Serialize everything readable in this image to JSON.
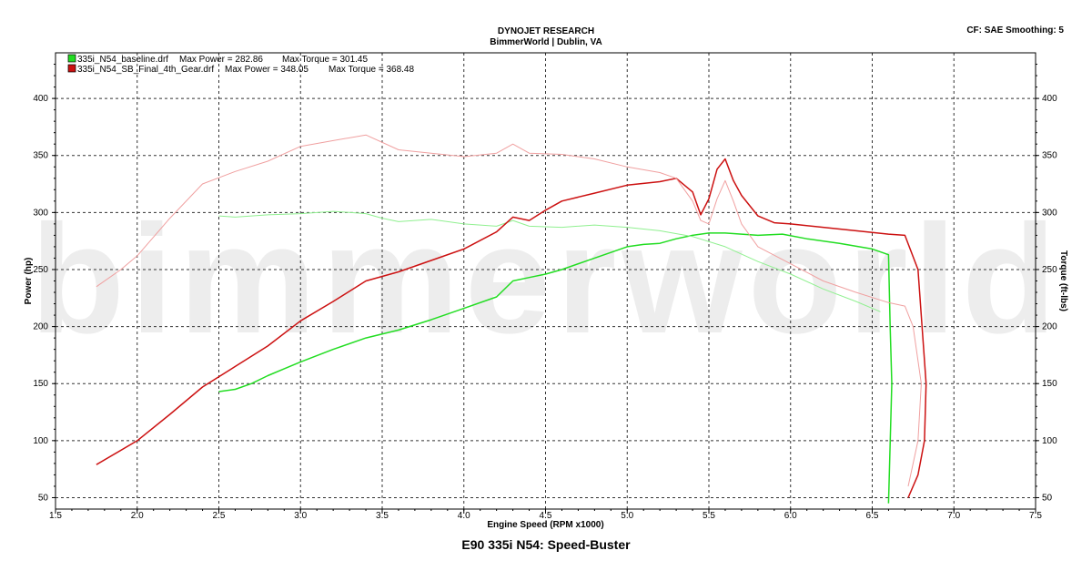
{
  "header": {
    "title": "DYNOJET RESEARCH",
    "subtitle": "BimmerWorld | Dublin, VA",
    "settings": "CF: SAE  Smoothing: 5"
  },
  "watermark": "bimmerworld",
  "chart_data": {
    "type": "line",
    "title": "E90 335i N54: Speed-Buster",
    "xlabel": "Engine Speed (RPM x1000)",
    "ylabel_left": "Power (hp)",
    "ylabel_right": "Torque (ft-lbs)",
    "xlim": [
      1.5,
      7.5
    ],
    "ylim_left": [
      40,
      440
    ],
    "ylim_right": [
      40,
      440
    ],
    "xticks": [
      "1.5",
      "2.0",
      "2.5",
      "3.0",
      "3.5",
      "4.0",
      "4.5",
      "5.0",
      "5.5",
      "6.0",
      "6.5",
      "7.0",
      "7.5"
    ],
    "yticks_left": [
      "50",
      "100",
      "150",
      "200",
      "250",
      "300",
      "350",
      "400"
    ],
    "yticks_right": [
      "50",
      "100",
      "150",
      "200",
      "250",
      "300",
      "350",
      "400"
    ],
    "grid": true,
    "legend": [
      {
        "file": "335i_N54_baseline.drf",
        "max_power_label": "Max Power = 282.86",
        "max_torque_label": "Max Torque = 301.45",
        "color": "#22dd22"
      },
      {
        "file": "335i_N54_SB_Final_4th_Gear.drf",
        "max_power_label": "Max Power = 348.05",
        "max_torque_label": "Max Torque = 368.48",
        "color": "#cc1111"
      }
    ],
    "series": [
      {
        "name": "335i_N54_baseline.drf",
        "quantity": "power",
        "color": "#22dd22",
        "width": 1.5,
        "x": [
          2.5,
          2.6,
          2.7,
          2.8,
          2.9,
          3.0,
          3.2,
          3.4,
          3.6,
          3.8,
          4.0,
          4.2,
          4.3,
          4.4,
          4.5,
          4.6,
          4.8,
          5.0,
          5.1,
          5.2,
          5.3,
          5.4,
          5.5,
          5.6,
          5.8,
          5.95,
          6.1,
          6.3,
          6.5,
          6.6,
          6.61,
          6.62,
          6.6
        ],
        "y": [
          143,
          145,
          150,
          157,
          163,
          169,
          180,
          190,
          197,
          206,
          216,
          226,
          240,
          243,
          246,
          250,
          260,
          270,
          272,
          273,
          277,
          280,
          282,
          282,
          280,
          281,
          277,
          273,
          268,
          263,
          200,
          150,
          45
        ]
      },
      {
        "name": "335i_N54_baseline.drf",
        "quantity": "torque",
        "color": "#90f090",
        "width": 1.0,
        "x": [
          2.5,
          2.6,
          2.8,
          3.0,
          3.2,
          3.3,
          3.4,
          3.5,
          3.6,
          3.8,
          4.0,
          4.2,
          4.3,
          4.4,
          4.6,
          4.8,
          5.0,
          5.2,
          5.4,
          5.6,
          5.8,
          6.0,
          6.2,
          6.4,
          6.55
        ],
        "y": [
          297,
          296,
          298,
          299,
          301,
          300,
          299,
          295,
          292,
          294,
          290,
          288,
          293,
          288,
          287,
          289,
          287,
          284,
          279,
          270,
          257,
          246,
          233,
          222,
          213
        ]
      },
      {
        "name": "335i_N54_SB_Final_4th_Gear.drf",
        "quantity": "power",
        "color": "#cc1111",
        "width": 1.5,
        "x": [
          1.75,
          2.0,
          2.2,
          2.4,
          2.6,
          2.8,
          3.0,
          3.2,
          3.4,
          3.6,
          3.8,
          4.0,
          4.2,
          4.3,
          4.4,
          4.5,
          4.6,
          4.8,
          5.0,
          5.2,
          5.3,
          5.4,
          5.45,
          5.5,
          5.55,
          5.6,
          5.65,
          5.7,
          5.8,
          5.9,
          6.0,
          6.2,
          6.4,
          6.6,
          6.7,
          6.78,
          6.83,
          6.82,
          6.78,
          6.72
        ],
        "y": [
          79,
          100,
          123,
          147,
          165,
          183,
          205,
          222,
          240,
          248,
          258,
          268,
          283,
          296,
          293,
          302,
          310,
          317,
          324,
          327,
          330,
          318,
          298,
          312,
          338,
          347,
          328,
          315,
          297,
          291,
          290,
          287,
          284,
          281,
          280,
          250,
          150,
          100,
          70,
          50
        ]
      },
      {
        "name": "335i_N54_SB_Final_4th_Gear.drf",
        "quantity": "torque",
        "color": "#f0a0a0",
        "width": 1.0,
        "x": [
          1.75,
          1.9,
          2.0,
          2.2,
          2.4,
          2.6,
          2.8,
          3.0,
          3.2,
          3.4,
          3.6,
          3.8,
          4.0,
          4.2,
          4.3,
          4.4,
          4.6,
          4.8,
          5.0,
          5.2,
          5.3,
          5.4,
          5.45,
          5.5,
          5.55,
          5.6,
          5.65,
          5.7,
          5.8,
          6.0,
          6.2,
          6.4,
          6.6,
          6.7,
          6.75,
          6.8,
          6.78,
          6.72
        ],
        "y": [
          235,
          250,
          262,
          295,
          325,
          336,
          345,
          358,
          363,
          368,
          355,
          352,
          349,
          352,
          360,
          352,
          351,
          347,
          340,
          335,
          330,
          310,
          293,
          290,
          312,
          328,
          310,
          290,
          270,
          255,
          240,
          230,
          221,
          218,
          200,
          150,
          100,
          60
        ]
      }
    ]
  }
}
